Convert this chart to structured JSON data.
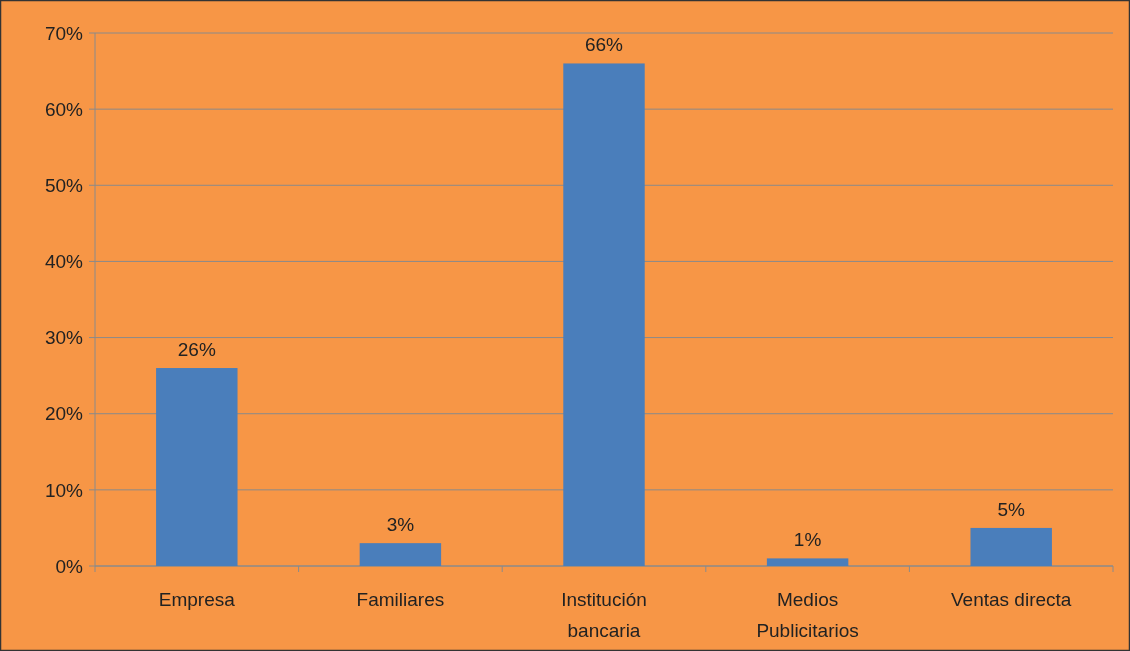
{
  "chart_data": {
    "type": "bar",
    "categories": [
      "Empresa",
      "Familiares",
      "Institución bancaria",
      "Medios Publicitarios",
      "Ventas directa"
    ],
    "values": [
      26,
      3,
      66,
      1,
      5
    ],
    "value_labels": [
      "26%",
      "3%",
      "66%",
      "1%",
      "5%"
    ],
    "color": "#4a7ebb",
    "grid": "y",
    "ylim": [
      0,
      70
    ],
    "yticks": [
      {
        "value": 0,
        "label": "0%"
      },
      {
        "value": 10,
        "label": "10%"
      },
      {
        "value": 20,
        "label": "20%"
      },
      {
        "value": 30,
        "label": "30%"
      },
      {
        "value": 40,
        "label": "40%"
      },
      {
        "value": 50,
        "label": "50%"
      },
      {
        "value": 60,
        "label": "60%"
      },
      {
        "value": 70,
        "label": "70%"
      }
    ]
  }
}
